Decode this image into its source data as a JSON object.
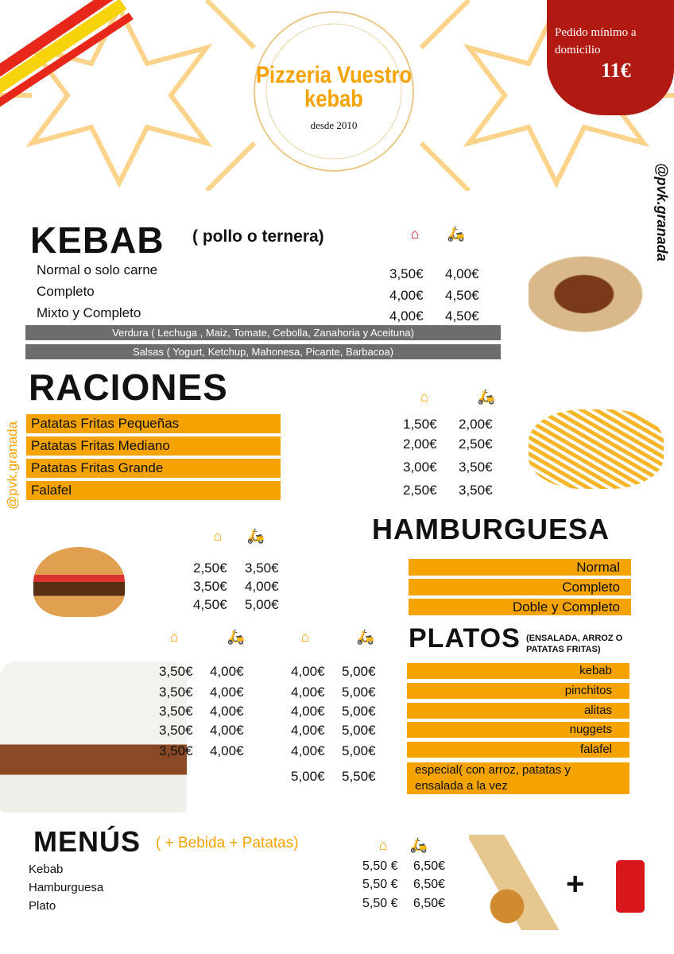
{
  "header": {
    "logo_title": "Pizzeria Vuestro kebab",
    "logo_subtitle": "desde 2010",
    "min_order_label": "Pedido mínimo a domicilio",
    "min_order_price": "11€",
    "social_right": "@pvk.granada",
    "social_left": "@pvk.granada"
  },
  "colors": {
    "orange": "#f5a300",
    "red": "#b01a12",
    "grey": "#6d6d6d",
    "dark_red_icon": "#c0262b",
    "green_icon": "#8dc63f"
  },
  "kebab": {
    "title": "KEBAB",
    "subtitle": "( pollo o ternera)",
    "icons": [
      "house-icon",
      "delivery-scooter-icon"
    ],
    "items": [
      {
        "name": "Normal o solo carne",
        "local": "3,50€",
        "delivery": "4,00€"
      },
      {
        "name": "Completo",
        "local": "4,00€",
        "delivery": "4,50€"
      },
      {
        "name": "Mixto y Completo",
        "local": "4,00€",
        "delivery": "4,50€"
      }
    ],
    "notes": [
      "Verdura ( Lechuga , Maiz, Tomate, Cebolla, Zanahoria y Aceituna)",
      "Salsas ( Yogurt, Ketchup, Mahonesa, Picante, Barbacoa)"
    ]
  },
  "raciones": {
    "title": "RACIONES",
    "items": [
      {
        "name": "Patatas  Fritas Pequeñas",
        "local": "1,50€",
        "delivery": "2,00€"
      },
      {
        "name": "Patatas Fritas Mediano",
        "local": "2,00€",
        "delivery": "2,50€"
      },
      {
        "name": "Patatas Fritas Grande",
        "local": "3,00€",
        "delivery": "3,50€"
      },
      {
        "name": "Falafel",
        "local": "2,50€",
        "delivery": "3,50€"
      }
    ]
  },
  "hamburguesa": {
    "title": "HAMBURGUESA",
    "items": [
      {
        "name": "Normal",
        "local": "2,50€",
        "delivery": "3,50€"
      },
      {
        "name": "Completo",
        "local": "3,50€",
        "delivery": "4,00€"
      },
      {
        "name": "Doble y Completo",
        "local": "4,50€",
        "delivery": "5,00€"
      }
    ]
  },
  "platos": {
    "title": "PLATOS",
    "subtitle": "(ENSALADA, ARROZ O PATATAS FRITAS)",
    "items": [
      {
        "name": "kebab",
        "p1": "3,50€",
        "p2": "4,00€",
        "p3": "4,00€",
        "p4": "5,00€"
      },
      {
        "name": "pinchitos",
        "p1": "3,50€",
        "p2": "4,00€",
        "p3": "4,00€",
        "p4": "5,00€"
      },
      {
        "name": "alitas",
        "p1": "3,50€",
        "p2": "4,00€",
        "p3": "4,00€",
        "p4": "5,00€"
      },
      {
        "name": "nuggets",
        "p1": "3,50€",
        "p2": "4,00€",
        "p3": "4,00€",
        "p4": "5,00€"
      },
      {
        "name": "falafel",
        "p1": "3,50€",
        "p2": "4,00€",
        "p3": "4,00€",
        "p4": "5,00€"
      },
      {
        "name": "especial( con arroz, patatas y ensalada a la vez",
        "p3": "5,00€",
        "p4": "5,50€"
      }
    ]
  },
  "menus": {
    "title": "MENÚS",
    "subtitle": "( + Bebida + Patatas)",
    "items": [
      {
        "name": "Kebab",
        "local": "5,50 €",
        "delivery": "6,50€"
      },
      {
        "name": "Hamburguesa",
        "local": "5,50 €",
        "delivery": "6,50€"
      },
      {
        "name": "Plato",
        "local": "5,50 €",
        "delivery": "6,50€"
      }
    ],
    "plus": "+"
  }
}
